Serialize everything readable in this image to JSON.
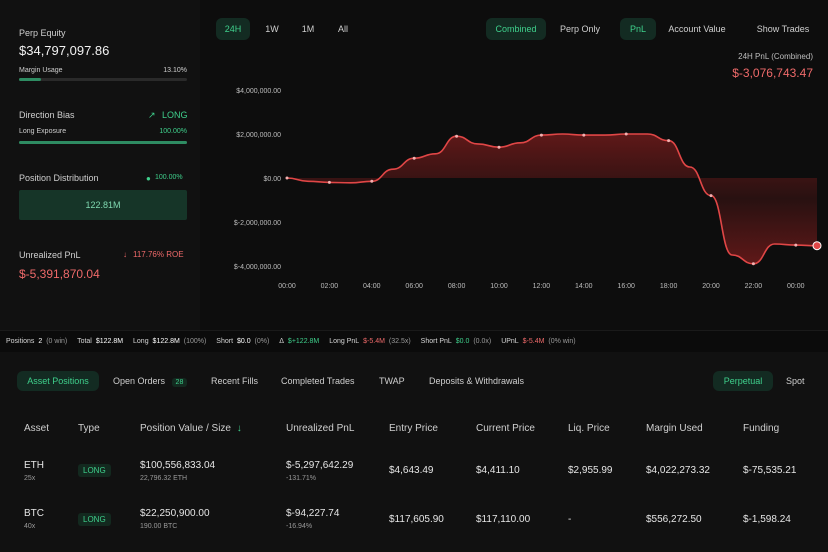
{
  "left": {
    "perp_equity_label": "Perp Equity",
    "perp_equity_value": "$34,797,097.86",
    "margin_usage_label": "Margin Usage",
    "margin_usage_value": "13.10%",
    "margin_usage_fraction": 0.131,
    "direction_bias_label": "Direction Bias",
    "direction_bias_value": "LONG",
    "long_exposure_label": "Long Exposure",
    "long_exposure_value": "100.00%",
    "long_exposure_fraction": 1.0,
    "position_distribution_label": "Position Distribution",
    "position_distribution_value": "100.00%",
    "position_distribution_bar": "122.81M",
    "unrealized_pnl_label": "Unrealized PnL",
    "roe_value": "117.76% ROE",
    "unrealized_pnl_value": "$-5,391,870.04"
  },
  "chart_controls": {
    "time_tabs": [
      "24H",
      "1W",
      "1M",
      "All"
    ],
    "active_time_tab": "24H",
    "mode_tabs": [
      "Combined",
      "Perp Only"
    ],
    "active_mode_tab": "Combined",
    "metric_tabs": [
      "PnL",
      "Account Value"
    ],
    "active_metric_tab": "PnL",
    "show_trades": "Show Trades",
    "summary_label": "24H PnL (Combined)",
    "summary_value": "$-3,076,743.47"
  },
  "chart_data": {
    "type": "area",
    "x": [
      "00:00",
      "01:00",
      "02:00",
      "03:00",
      "04:00",
      "05:00",
      "06:00",
      "07:00",
      "08:00",
      "09:00",
      "10:00",
      "11:00",
      "12:00",
      "13:00",
      "14:00",
      "15:00",
      "16:00",
      "17:00",
      "18:00",
      "19:00",
      "20:00",
      "21:00",
      "22:00",
      "23:00",
      "00:00",
      "01:00"
    ],
    "values": [
      0,
      -150000,
      -200000,
      -220000,
      -150000,
      400000,
      900000,
      1100000,
      1900000,
      1550000,
      1400000,
      1600000,
      1950000,
      2000000,
      1950000,
      1950000,
      2000000,
      2000000,
      1700000,
      500000,
      -800000,
      -3500000,
      -3900000,
      -3000000,
      -3050000,
      -3076743.47
    ],
    "tick_labels_x": [
      "00:00",
      "02:00",
      "04:00",
      "06:00",
      "08:00",
      "10:00",
      "12:00",
      "14:00",
      "16:00",
      "18:00",
      "20:00",
      "22:00",
      "00:00"
    ],
    "tick_labels_y": [
      "$4,000,000.00",
      "$2,000,000.00",
      "$0.00",
      "$-2,000,000.00",
      "$-4,000,000.00"
    ],
    "ylim": [
      -4000000,
      4000000
    ],
    "grid": false,
    "colors": {
      "line": "#e04646",
      "fill": "#7a1c1c"
    }
  },
  "stats_bar": {
    "positions_label": "Positions",
    "positions_value": "2",
    "positions_win": "(0 win)",
    "total_label": "Total",
    "total_value": "$122.8M",
    "long_label": "Long",
    "long_value": "$122.8M",
    "long_pct": "(100%)",
    "short_label": "Short",
    "short_value": "$0.0",
    "short_pct": "(0%)",
    "delta_label": "Δ",
    "delta_value": "$+122.8M",
    "long_pnl_label": "Long PnL",
    "long_pnl_value": "$-5.4M",
    "long_pnl_ratio": "(32.5x)",
    "short_pnl_label": "Short PnL",
    "short_pnl_value": "$0.0",
    "short_pnl_ratio": "(0.0x)",
    "upnl_label": "UPnL",
    "upnl_value": "$-5.4M",
    "upnl_win": "(0% win)"
  },
  "lower_tabs": {
    "items": [
      "Asset Positions",
      "Open Orders",
      "Recent Fills",
      "Completed Trades",
      "TWAP",
      "Deposits & Withdrawals"
    ],
    "open_orders_count": "28",
    "active": "Asset Positions",
    "right_items": [
      "Perpetual",
      "Spot"
    ],
    "right_active": "Perpetual"
  },
  "table": {
    "headers": [
      "Asset",
      "Type",
      "Position Value / Size",
      "Unrealized PnL",
      "Entry Price",
      "Current Price",
      "Liq. Price",
      "Margin Used",
      "Funding"
    ],
    "sort_indicator": "↓",
    "rows": [
      {
        "asset": "ETH",
        "leverage": "25x",
        "type": "LONG",
        "position_value": "$100,556,833.04",
        "size": "22,796.32 ETH",
        "upnl": "$-5,297,642.29",
        "upnl_pct": "-131.71%",
        "entry": "$4,643.49",
        "current": "$4,411.10",
        "liq": "$2,955.99",
        "margin": "$4,022,273.32",
        "funding": "$-75,535.21"
      },
      {
        "asset": "BTC",
        "leverage": "40x",
        "type": "LONG",
        "position_value": "$22,250,900.00",
        "size": "190.00 BTC",
        "upnl": "$-94,227.74",
        "upnl_pct": "-16.94%",
        "entry": "$117,605.90",
        "current": "$117,110.00",
        "liq": "-",
        "margin": "$556,272.50",
        "funding": "$-1,598.24"
      }
    ]
  }
}
